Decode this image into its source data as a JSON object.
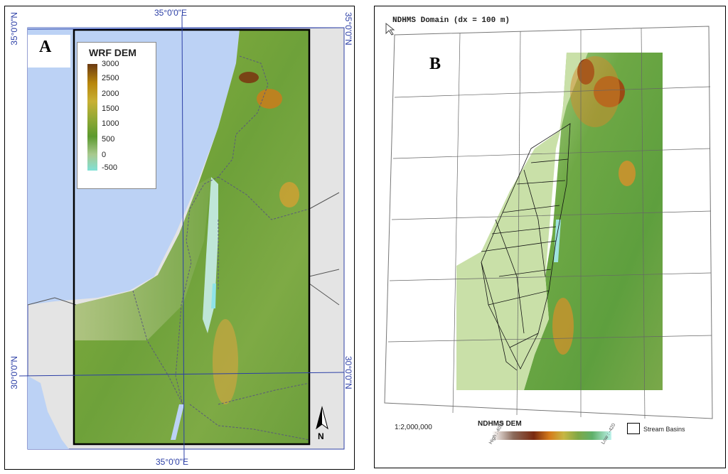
{
  "panel_a": {
    "letter": "A",
    "legend_title": "WRF DEM",
    "legend_ticks": [
      "3000",
      "2500",
      "2000",
      "1500",
      "1000",
      "500",
      "0",
      "-500"
    ],
    "coord_top": "35°0'0\"E",
    "coord_bottom": "35°0'0\"E",
    "coord_left_top": "35°0'0\"N",
    "coord_right_top": "35°0'0\"N",
    "coord_left_bottom": "30°0'0\"N",
    "coord_right_bottom": "30°0'0\"N",
    "north_label": "N",
    "colors": {
      "sea": "#bcd2f5",
      "land": "#e6e6e6",
      "border": "#2c3fa6"
    }
  },
  "panel_b": {
    "letter": "B",
    "title": "NDHMS Domain (dx = 100 m)",
    "scale": "1:2,000,000",
    "dem_title": "NDHMS DEM",
    "dem_high": "High : 4054",
    "dem_low": "Low : -420",
    "basin_label": "Stream Basins",
    "icons": [
      "cursor-arrow-icon"
    ]
  }
}
